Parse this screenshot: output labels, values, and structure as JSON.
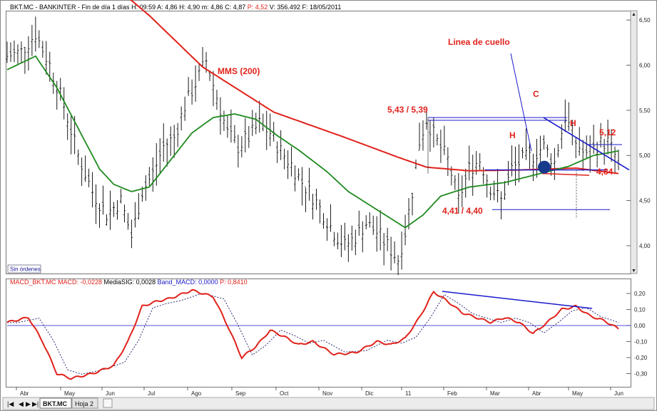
{
  "header": {
    "instrument": "BKT.MC - BANKINTER - Fin de día 1 días",
    "stats": [
      {
        "text": "H: 09:59",
        "color": "#000000"
      },
      {
        "text": "A: 4,86",
        "color": "#000000"
      },
      {
        "text": "H: 4,90",
        "color": "#000000"
      },
      {
        "text": "m: 4,86",
        "color": "#000000"
      },
      {
        "text": "C: 4,87",
        "color": "#000000"
      },
      {
        "text": "P: 4,52",
        "color": "#e0221b"
      },
      {
        "text": "V: 356.492",
        "color": "#000000"
      },
      {
        "text": "F: 18/05/2011",
        "color": "#000000"
      }
    ]
  },
  "macd_header": {
    "items": [
      {
        "text": "MACD_BKT.MC",
        "color": "#e0221b"
      },
      {
        "text": "MACD: -0,0228",
        "color": "#e0221b"
      },
      {
        "text": "MediaSIG: 0,0028",
        "color": "#000000"
      },
      {
        "text": "Band_MACD: 0,0000",
        "color": "#1a1acc"
      },
      {
        "text": "P: 0,8410",
        "color": "#e0221b"
      }
    ]
  },
  "orders_label": "Sin órdenes",
  "tabs": {
    "symbol": "BKT.MC",
    "sheet": "Hoja 2"
  },
  "colors": {
    "price": "#000000",
    "mms200": "#e0221b",
    "mms_short": "#1e8a1e",
    "trend": "#1a1acc",
    "annotation": "#e0221b",
    "macd": "#e0221b",
    "signal": "#1a1a66"
  },
  "chart_data": [
    {
      "type": "line",
      "ylim": [
        3.7,
        6.58
      ],
      "y_ticks": [
        4.0,
        4.5,
        5.0,
        5.5,
        6.0,
        6.5
      ],
      "y_tick_labels": [
        "4,00",
        "4,50",
        "5,00",
        "5,50",
        "6,00",
        "6,50"
      ],
      "x_ticks": [
        "Abr",
        "May",
        "Jun",
        "Jul",
        "Ago",
        "Sep",
        "Oct",
        "Nov",
        "Dic",
        "11",
        "Feb",
        "Mar",
        "Abr",
        "May",
        "Jun"
      ],
      "price_path": [
        [
          0,
          6.1
        ],
        [
          4,
          6.15
        ],
        [
          8,
          6.35
        ],
        [
          12,
          6.0
        ],
        [
          16,
          5.55
        ],
        [
          20,
          5.0
        ],
        [
          24,
          4.6
        ],
        [
          28,
          4.35
        ],
        [
          32,
          4.5
        ],
        [
          35,
          4.1
        ],
        [
          38,
          4.6
        ],
        [
          41,
          4.8
        ],
        [
          44,
          5.1
        ],
        [
          47,
          5.2
        ],
        [
          50,
          5.55
        ],
        [
          53,
          5.8
        ],
        [
          56,
          6.05
        ],
        [
          59,
          5.65
        ],
        [
          62,
          5.25
        ],
        [
          65,
          5.1
        ],
        [
          68,
          5.2
        ],
        [
          71,
          5.35
        ],
        [
          74,
          5.25
        ],
        [
          77,
          5.05
        ],
        [
          80,
          4.9
        ],
        [
          83,
          4.7
        ],
        [
          86,
          4.55
        ],
        [
          89,
          4.35
        ],
        [
          92,
          4.15
        ],
        [
          95,
          4.0
        ],
        [
          98,
          4.1
        ],
        [
          101,
          4.25
        ],
        [
          104,
          4.15
        ],
        [
          107,
          4.0
        ],
        [
          110,
          3.85
        ],
        [
          112,
          4.15
        ],
        [
          114,
          4.6
        ],
        [
          116,
          5.15
        ],
        [
          118,
          5.4
        ],
        [
          121,
          5.15
        ],
        [
          124,
          4.95
        ],
        [
          127,
          4.5
        ],
        [
          130,
          4.85
        ],
        [
          133,
          4.95
        ],
        [
          136,
          4.65
        ],
        [
          139,
          4.5
        ],
        [
          142,
          4.85
        ],
        [
          145,
          4.95
        ],
        [
          148,
          5.0
        ],
        [
          151,
          5.1
        ],
        [
          154,
          4.92
        ],
        [
          157,
          5.43
        ],
        [
          160,
          5.15
        ],
        [
          163,
          4.98
        ],
        [
          166,
          5.12
        ],
        [
          169,
          5.15
        ],
        [
          171,
          5.0
        ],
        [
          172,
          4.87
        ]
      ],
      "mms200": [
        [
          28,
          6.95
        ],
        [
          40,
          6.55
        ],
        [
          55,
          5.98
        ],
        [
          75,
          5.48
        ],
        [
          95,
          5.2
        ],
        [
          110,
          4.98
        ],
        [
          118,
          4.87
        ],
        [
          130,
          4.83
        ],
        [
          145,
          4.84
        ],
        [
          160,
          4.86
        ],
        [
          172,
          4.8
        ]
      ],
      "mms_short": [
        [
          0,
          5.95
        ],
        [
          8,
          6.1
        ],
        [
          14,
          5.75
        ],
        [
          20,
          5.3
        ],
        [
          26,
          4.85
        ],
        [
          30,
          4.68
        ],
        [
          35,
          4.6
        ],
        [
          40,
          4.65
        ],
        [
          46,
          4.95
        ],
        [
          52,
          5.25
        ],
        [
          58,
          5.42
        ],
        [
          64,
          5.46
        ],
        [
          70,
          5.4
        ],
        [
          76,
          5.22
        ],
        [
          82,
          5.06
        ],
        [
          90,
          4.82
        ],
        [
          96,
          4.6
        ],
        [
          102,
          4.45
        ],
        [
          108,
          4.3
        ],
        [
          112,
          4.2
        ],
        [
          117,
          4.34
        ],
        [
          122,
          4.55
        ],
        [
          130,
          4.65
        ],
        [
          140,
          4.7
        ],
        [
          150,
          4.8
        ],
        [
          158,
          4.88
        ],
        [
          165,
          5.0
        ],
        [
          172,
          5.05
        ]
      ],
      "macd_path": [
        [
          0,
          0.02
        ],
        [
          6,
          0.05
        ],
        [
          10,
          -0.1
        ],
        [
          14,
          -0.3
        ],
        [
          18,
          -0.33
        ],
        [
          24,
          -0.3
        ],
        [
          30,
          -0.25
        ],
        [
          34,
          -0.1
        ],
        [
          38,
          0.12
        ],
        [
          42,
          0.15
        ],
        [
          46,
          0.17
        ],
        [
          52,
          0.22
        ],
        [
          58,
          0.18
        ],
        [
          62,
          0.0
        ],
        [
          66,
          -0.2
        ],
        [
          70,
          -0.13
        ],
        [
          74,
          -0.03
        ],
        [
          78,
          -0.07
        ],
        [
          82,
          -0.12
        ],
        [
          86,
          -0.1
        ],
        [
          92,
          -0.18
        ],
        [
          98,
          -0.17
        ],
        [
          104,
          -0.1
        ],
        [
          108,
          -0.12
        ],
        [
          112,
          -0.08
        ],
        [
          116,
          0.05
        ],
        [
          120,
          0.21
        ],
        [
          124,
          0.15
        ],
        [
          128,
          0.08
        ],
        [
          132,
          0.05
        ],
        [
          136,
          0.02
        ],
        [
          140,
          0.05
        ],
        [
          144,
          0.02
        ],
        [
          148,
          -0.05
        ],
        [
          152,
          0.02
        ],
        [
          156,
          0.1
        ],
        [
          160,
          0.12
        ],
        [
          164,
          0.06
        ],
        [
          168,
          0.03
        ],
        [
          172,
          -0.02
        ]
      ],
      "macd_ylim": [
        -0.36,
        0.24
      ],
      "macd_y_ticks": [
        -0.3,
        -0.2,
        -0.1,
        0.0,
        0.1,
        0.2
      ],
      "macd_y_tick_labels": [
        "-0,30",
        "-0,20",
        "-0,10",
        "0,00",
        "0,10",
        "0,20"
      ],
      "annotations": [
        {
          "text": "Linea de cuello",
          "kind": "label"
        },
        {
          "text": "MMS (200)",
          "kind": "label"
        },
        {
          "text": "C",
          "kind": "label"
        },
        {
          "text": "H",
          "kind": "label"
        },
        {
          "text": "H",
          "kind": "label"
        },
        {
          "text": "5,43 / 5,39",
          "kind": "level"
        },
        {
          "text": "4,41 / 4,40",
          "kind": "level"
        },
        {
          "text": "5,12",
          "kind": "level"
        },
        {
          "text": "4,84",
          "kind": "level"
        }
      ]
    }
  ]
}
